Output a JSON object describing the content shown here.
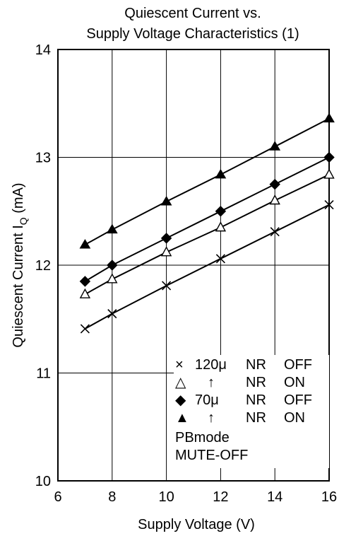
{
  "chart_data": {
    "type": "line",
    "title_lines": [
      "Quiescent Current vs.",
      "Supply Voltage Characteristics  (1)"
    ],
    "xlabel": "Supply Voltage  (V)",
    "ylabel_main": "Quiescent Current  I",
    "ylabel_sub": "Q",
    "ylabel_unit": " (mA)",
    "xlim": [
      6,
      16
    ],
    "ylim": [
      10,
      14
    ],
    "x_ticks": [
      "6",
      "8",
      "10",
      "12",
      "14",
      "16"
    ],
    "y_ticks": [
      "10",
      "11",
      "12",
      "13",
      "14"
    ],
    "grid": true,
    "legend_position": "bottom-right",
    "series": [
      {
        "marker": "cross",
        "x": [
          7,
          8,
          10,
          12,
          14,
          16
        ],
        "y": [
          11.41,
          11.55,
          11.81,
          12.06,
          12.31,
          12.56
        ]
      },
      {
        "marker": "open-triangle",
        "x": [
          7,
          8,
          10,
          12,
          14,
          16
        ],
        "y": [
          11.73,
          11.87,
          12.12,
          12.35,
          12.6,
          12.84
        ]
      },
      {
        "marker": "diamond",
        "x": [
          7,
          8,
          10,
          12,
          14,
          16
        ],
        "y": [
          11.85,
          12.0,
          12.25,
          12.5,
          12.75,
          13.0
        ]
      },
      {
        "marker": "filled-triangle",
        "x": [
          7,
          8,
          10,
          12,
          14,
          16
        ],
        "y": [
          12.19,
          12.33,
          12.59,
          12.84,
          13.1,
          13.36
        ]
      }
    ],
    "legend": [
      {
        "symbol": "×",
        "c1": "120μ",
        "c2": "NR",
        "c3": "OFF"
      },
      {
        "symbol": "△",
        "c1": "↑",
        "c2": "NR",
        "c3": "ON"
      },
      {
        "symbol": "◆",
        "c1": "70μ",
        "c2": "NR",
        "c3": "OFF"
      },
      {
        "symbol": "▲",
        "c1": "↑",
        "c2": "NR",
        "c3": "ON"
      }
    ],
    "notes": [
      "PBmode",
      "MUTE-OFF"
    ]
  }
}
